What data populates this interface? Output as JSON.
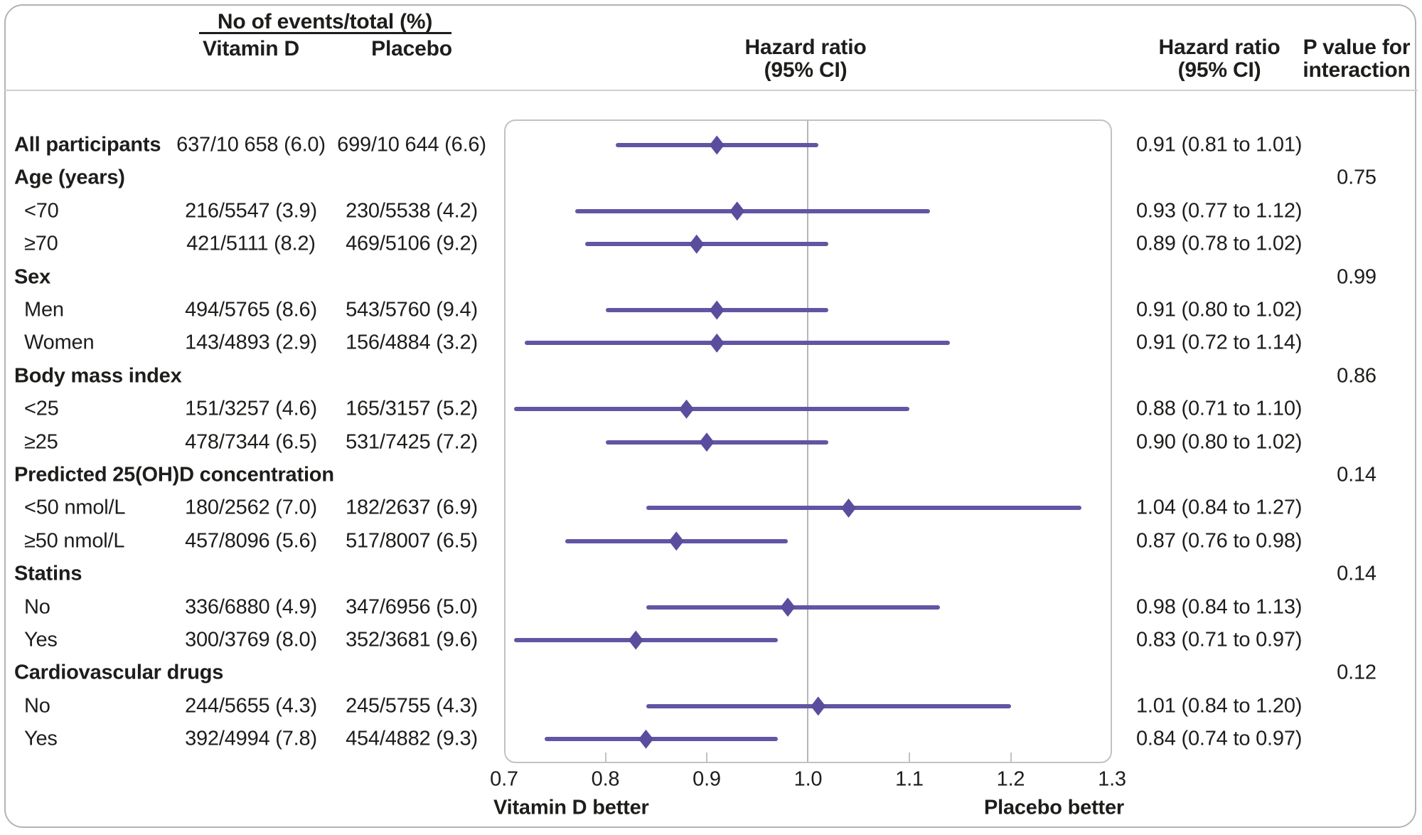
{
  "colors": {
    "text": "#1d1d1b",
    "ci_line": "#6156a4",
    "marker": "#5a4d9e",
    "reference_line": "#b5b5b5",
    "plot_box_border": "#c2c2c2",
    "outer_frame": "#b3b3b3",
    "header_divider": "#cfcfcf"
  },
  "chart_data": {
    "type": "forest",
    "columns": {
      "events_group": "No of events/total (%)",
      "vitamin_d": "Vitamin D",
      "placebo": "Placebo",
      "hazard_ratio_line1": "Hazard ratio",
      "hazard_ratio_line2": "(95% CI)",
      "p_value_line1": "P value for",
      "p_value_line2": "interaction"
    },
    "x_axis": {
      "min": 0.7,
      "max": 1.3,
      "ticks": [
        "0.7",
        "0.8",
        "0.9",
        "1.0",
        "1.1",
        "1.2",
        "1.3"
      ],
      "tick_values": [
        0.7,
        0.8,
        0.9,
        1.0,
        1.1,
        1.2,
        1.3
      ],
      "reference_line": 1.0,
      "left_direction_label": "Vitamin D better",
      "right_direction_label": "Placebo better"
    },
    "rows": [
      {
        "type": "overall",
        "label": "All participants",
        "vitamin_d": "637/10 658 (6.0)",
        "placebo": "699/10 644 (6.6)",
        "hr": 0.91,
        "ci_low": 0.81,
        "ci_high": 1.01,
        "hr_ci_text": "0.91 (0.81 to 1.01)"
      },
      {
        "type": "group",
        "label": "Age (years)",
        "p_value": "0.75"
      },
      {
        "type": "item",
        "label": "<70",
        "vitamin_d": "216/5547 (3.9)",
        "placebo": "230/5538 (4.2)",
        "hr": 0.93,
        "ci_low": 0.77,
        "ci_high": 1.12,
        "hr_ci_text": "0.93 (0.77 to 1.12)"
      },
      {
        "type": "item",
        "label": "≥70",
        "vitamin_d": "421/5111 (8.2)",
        "placebo": "469/5106 (9.2)",
        "hr": 0.89,
        "ci_low": 0.78,
        "ci_high": 1.02,
        "hr_ci_text": "0.89 (0.78 to 1.02)"
      },
      {
        "type": "group",
        "label": "Sex",
        "p_value": "0.99"
      },
      {
        "type": "item",
        "label": "Men",
        "vitamin_d": "494/5765 (8.6)",
        "placebo": "543/5760 (9.4)",
        "hr": 0.91,
        "ci_low": 0.8,
        "ci_high": 1.02,
        "hr_ci_text": "0.91 (0.80 to 1.02)"
      },
      {
        "type": "item",
        "label": "Women",
        "vitamin_d": "143/4893 (2.9)",
        "placebo": "156/4884 (3.2)",
        "hr": 0.91,
        "ci_low": 0.72,
        "ci_high": 1.14,
        "hr_ci_text": "0.91 (0.72 to 1.14)"
      },
      {
        "type": "group",
        "label": "Body mass index",
        "p_value": "0.86"
      },
      {
        "type": "item",
        "label": "<25",
        "vitamin_d": "151/3257 (4.6)",
        "placebo": "165/3157 (5.2)",
        "hr": 0.88,
        "ci_low": 0.71,
        "ci_high": 1.1,
        "hr_ci_text": "0.88 (0.71 to 1.10)"
      },
      {
        "type": "item",
        "label": "≥25",
        "vitamin_d": "478/7344 (6.5)",
        "placebo": "531/7425 (7.2)",
        "hr": 0.9,
        "ci_low": 0.8,
        "ci_high": 1.02,
        "hr_ci_text": "0.90 (0.80 to 1.02)"
      },
      {
        "type": "group",
        "label": "Predicted 25(OH)D concentration",
        "p_value": "0.14"
      },
      {
        "type": "item",
        "label": "<50 nmol/L",
        "vitamin_d": "180/2562 (7.0)",
        "placebo": "182/2637 (6.9)",
        "hr": 1.04,
        "ci_low": 0.84,
        "ci_high": 1.27,
        "hr_ci_text": "1.04 (0.84 to 1.27)"
      },
      {
        "type": "item",
        "label": "≥50 nmol/L",
        "vitamin_d": "457/8096 (5.6)",
        "placebo": "517/8007 (6.5)",
        "hr": 0.87,
        "ci_low": 0.76,
        "ci_high": 0.98,
        "hr_ci_text": "0.87 (0.76 to 0.98)"
      },
      {
        "type": "group",
        "label": "Statins",
        "p_value": "0.14"
      },
      {
        "type": "item",
        "label": "No",
        "vitamin_d": "336/6880 (4.9)",
        "placebo": "347/6956 (5.0)",
        "hr": 0.98,
        "ci_low": 0.84,
        "ci_high": 1.13,
        "hr_ci_text": "0.98 (0.84 to 1.13)"
      },
      {
        "type": "item",
        "label": "Yes",
        "vitamin_d": "300/3769 (8.0)",
        "placebo": "352/3681 (9.6)",
        "hr": 0.83,
        "ci_low": 0.71,
        "ci_high": 0.97,
        "hr_ci_text": "0.83 (0.71 to 0.97)"
      },
      {
        "type": "group",
        "label": "Cardiovascular drugs",
        "p_value": "0.12"
      },
      {
        "type": "item",
        "label": "No",
        "vitamin_d": "244/5655 (4.3)",
        "placebo": "245/5755 (4.3)",
        "hr": 1.01,
        "ci_low": 0.84,
        "ci_high": 1.2,
        "hr_ci_text": "1.01 (0.84 to 1.20)"
      },
      {
        "type": "item",
        "label": "Yes",
        "vitamin_d": "392/4994 (7.8)",
        "placebo": "454/4882 (9.3)",
        "hr": 0.84,
        "ci_low": 0.74,
        "ci_high": 0.97,
        "hr_ci_text": "0.84 (0.74 to 0.97)"
      }
    ]
  }
}
